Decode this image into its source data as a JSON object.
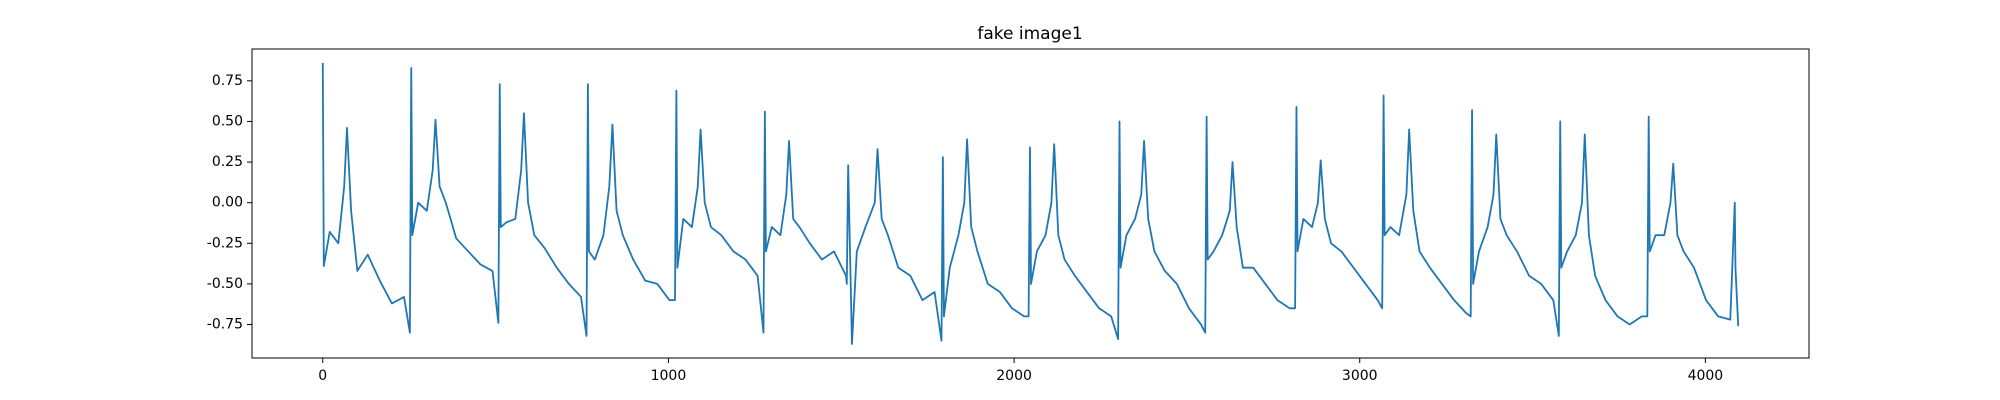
{
  "chart_data": {
    "type": "line",
    "title": "fake image1",
    "color": "#1f77b4",
    "x": [
      0,
      3,
      20,
      45,
      62,
      70,
      82,
      100,
      130,
      165,
      200,
      235,
      252,
      256,
      259,
      276,
      301,
      318,
      326,
      338,
      356,
      386,
      421,
      456,
      491,
      508,
      512,
      515,
      532,
      557,
      574,
      582,
      594,
      612,
      642,
      677,
      712,
      747,
      763,
      767,
      770,
      787,
      812,
      829,
      838,
      850,
      868,
      898,
      933,
      968,
      1003,
      1019,
      1023,
      1026,
      1043,
      1068,
      1085,
      1093,
      1105,
      1123,
      1153,
      1188,
      1223,
      1258,
      1275,
      1279,
      1282,
      1299,
      1324,
      1341,
      1349,
      1361,
      1379,
      1409,
      1444,
      1479,
      1514,
      1516,
      1520,
      1531,
      1545,
      1570,
      1597,
      1605,
      1617,
      1635,
      1665,
      1700,
      1735,
      1770,
      1790,
      1794,
      1797,
      1814,
      1839,
      1856,
      1864,
      1876,
      1894,
      1924,
      1959,
      1994,
      2029,
      2042,
      2046,
      2049,
      2066,
      2091,
      2108,
      2116,
      2128,
      2146,
      2176,
      2211,
      2246,
      2281,
      2301,
      2305,
      2308,
      2325,
      2350,
      2368,
      2376,
      2388,
      2406,
      2436,
      2471,
      2506,
      2541,
      2553,
      2557,
      2560,
      2577,
      2602,
      2624,
      2632,
      2644,
      2662,
      2692,
      2727,
      2762,
      2797,
      2813,
      2817,
      2820,
      2837,
      2862,
      2879,
      2887,
      2899,
      2917,
      2947,
      2982,
      3017,
      3052,
      3065,
      3069,
      3072,
      3089,
      3114,
      3135,
      3143,
      3155,
      3173,
      3203,
      3238,
      3273,
      3308,
      3321,
      3325,
      3328,
      3345,
      3370,
      3387,
      3395,
      3407,
      3425,
      3455,
      3490,
      3525,
      3560,
      3576,
      3580,
      3583,
      3600,
      3625,
      3643,
      3651,
      3663,
      3681,
      3711,
      3746,
      3781,
      3816,
      3832,
      3836,
      3839,
      3856,
      3881,
      3899,
      3907,
      3919,
      3937,
      3967,
      4002,
      4037,
      4072,
      4085,
      4087,
      4095
    ],
    "values": [
      0.86,
      -0.39,
      -0.18,
      -0.25,
      0.1,
      0.46,
      -0.05,
      -0.42,
      -0.32,
      -0.48,
      -0.62,
      -0.58,
      -0.8,
      0.83,
      -0.2,
      0.0,
      -0.05,
      0.2,
      0.51,
      0.1,
      0.0,
      -0.22,
      -0.3,
      -0.38,
      -0.42,
      -0.74,
      0.73,
      -0.15,
      -0.12,
      -0.1,
      0.2,
      0.55,
      0.0,
      -0.2,
      -0.28,
      -0.4,
      -0.5,
      -0.58,
      -0.82,
      0.73,
      -0.3,
      -0.35,
      -0.2,
      0.1,
      0.48,
      -0.05,
      -0.2,
      -0.35,
      -0.48,
      -0.5,
      -0.6,
      -0.6,
      0.69,
      -0.4,
      -0.1,
      -0.15,
      0.1,
      0.45,
      0.0,
      -0.15,
      -0.2,
      -0.3,
      -0.35,
      -0.45,
      -0.8,
      0.56,
      -0.3,
      -0.15,
      -0.2,
      0.05,
      0.38,
      -0.1,
      -0.15,
      -0.25,
      -0.35,
      -0.3,
      -0.45,
      -0.5,
      0.23,
      -0.87,
      -0.3,
      -0.15,
      0.0,
      0.33,
      -0.1,
      -0.2,
      -0.4,
      -0.45,
      -0.6,
      -0.55,
      -0.85,
      0.28,
      -0.7,
      -0.4,
      -0.2,
      0.0,
      0.39,
      -0.15,
      -0.3,
      -0.5,
      -0.55,
      -0.65,
      -0.7,
      -0.7,
      0.34,
      -0.5,
      -0.3,
      -0.2,
      0.0,
      0.36,
      -0.2,
      -0.35,
      -0.45,
      -0.55,
      -0.65,
      -0.7,
      -0.84,
      0.5,
      -0.4,
      -0.2,
      -0.1,
      0.05,
      0.38,
      -0.1,
      -0.3,
      -0.42,
      -0.5,
      -0.65,
      -0.75,
      -0.8,
      0.53,
      -0.35,
      -0.3,
      -0.2,
      -0.05,
      0.25,
      -0.15,
      -0.4,
      -0.4,
      -0.5,
      -0.6,
      -0.65,
      -0.65,
      0.59,
      -0.3,
      -0.1,
      -0.15,
      0.0,
      0.26,
      -0.1,
      -0.25,
      -0.3,
      -0.4,
      -0.5,
      -0.6,
      -0.65,
      0.66,
      -0.2,
      -0.15,
      -0.2,
      0.05,
      0.45,
      -0.05,
      -0.3,
      -0.4,
      -0.5,
      -0.6,
      -0.68,
      -0.7,
      0.57,
      -0.5,
      -0.3,
      -0.15,
      0.05,
      0.42,
      -0.1,
      -0.2,
      -0.3,
      -0.45,
      -0.5,
      -0.6,
      -0.82,
      0.5,
      -0.4,
      -0.3,
      -0.2,
      0.0,
      0.42,
      -0.2,
      -0.45,
      -0.6,
      -0.7,
      -0.75,
      -0.7,
      -0.7,
      0.53,
      -0.3,
      -0.2,
      -0.2,
      0.0,
      0.24,
      -0.2,
      -0.3,
      -0.4,
      -0.6,
      -0.7,
      -0.72,
      0.0,
      -0.4,
      -0.76
    ],
    "xlim": [
      -204.75,
      4299.75
    ],
    "xticks": [
      0,
      1000,
      2000,
      3000,
      4000
    ],
    "ylim": [
      -0.956,
      0.946
    ],
    "yticks": [
      -0.75,
      {
        "value": -0.5,
        "label": "-0.50"
      },
      -0.25,
      {
        "value": 0,
        "label": "0.00"
      },
      0.25,
      {
        "value": 0.5,
        "label": "0.50"
      },
      0.75
    ]
  }
}
